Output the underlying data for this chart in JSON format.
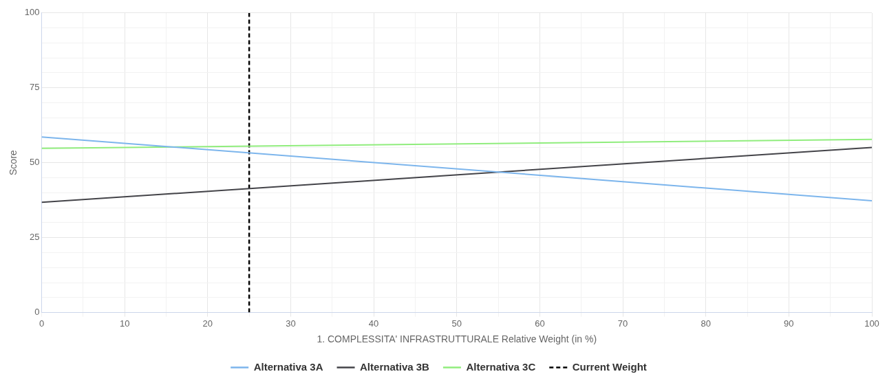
{
  "chart_data": {
    "type": "line",
    "xlabel": "1. COMPLESSITA' INFRASTRUTTURALE Relative Weight (in %)",
    "ylabel": "Score",
    "xlim": [
      0,
      100
    ],
    "ylim": [
      0,
      100
    ],
    "xticks": [
      0,
      {
        "value": 5,
        "label": null
      },
      10,
      {
        "value": 15,
        "label": null
      },
      20,
      {
        "value": 25,
        "label": null
      },
      30,
      {
        "value": 35,
        "label": null
      },
      40,
      {
        "value": 45,
        "label": null
      },
      50,
      {
        "value": 55,
        "label": null
      },
      60,
      {
        "value": 65,
        "label": null
      },
      70,
      {
        "value": 75,
        "label": null
      },
      80,
      {
        "value": 85,
        "label": null
      },
      90,
      {
        "value": 95,
        "label": null
      },
      100
    ],
    "yticks": [
      0,
      {
        "value": 5,
        "label": null
      },
      {
        "value": 10,
        "label": null
      },
      {
        "value": 15,
        "label": null
      },
      {
        "value": 20,
        "label": null
      },
      25,
      {
        "value": 30,
        "label": null
      },
      {
        "value": 35,
        "label": null
      },
      {
        "value": 40,
        "label": null
      },
      {
        "value": 45,
        "label": null
      },
      50,
      {
        "value": 55,
        "label": null
      },
      {
        "value": 60,
        "label": null
      },
      {
        "value": 65,
        "label": null
      },
      {
        "value": 70,
        "label": null
      },
      75,
      {
        "value": 80,
        "label": null
      },
      {
        "value": 85,
        "label": null
      },
      {
        "value": 90,
        "label": null
      },
      {
        "value": 95,
        "label": null
      },
      100
    ],
    "x": [
      0,
      100
    ],
    "series": [
      {
        "name": "Alternativa 3A",
        "color": "#7cb5ec",
        "values": [
          58.6,
          37.3
        ]
      },
      {
        "name": "Alternativa 3B",
        "color": "#434348",
        "values": [
          36.8,
          55.1
        ]
      },
      {
        "name": "Alternativa 3C",
        "color": "#90ed7d",
        "values": [
          54.8,
          57.8
        ]
      }
    ],
    "ref_lines": [
      {
        "axis": "x",
        "value": 25,
        "label": "Current Weight",
        "color": "#000000",
        "line_style": "dashed"
      }
    ],
    "grid": true,
    "legend": "bottom",
    "marker": "none",
    "line_style": "solid"
  }
}
